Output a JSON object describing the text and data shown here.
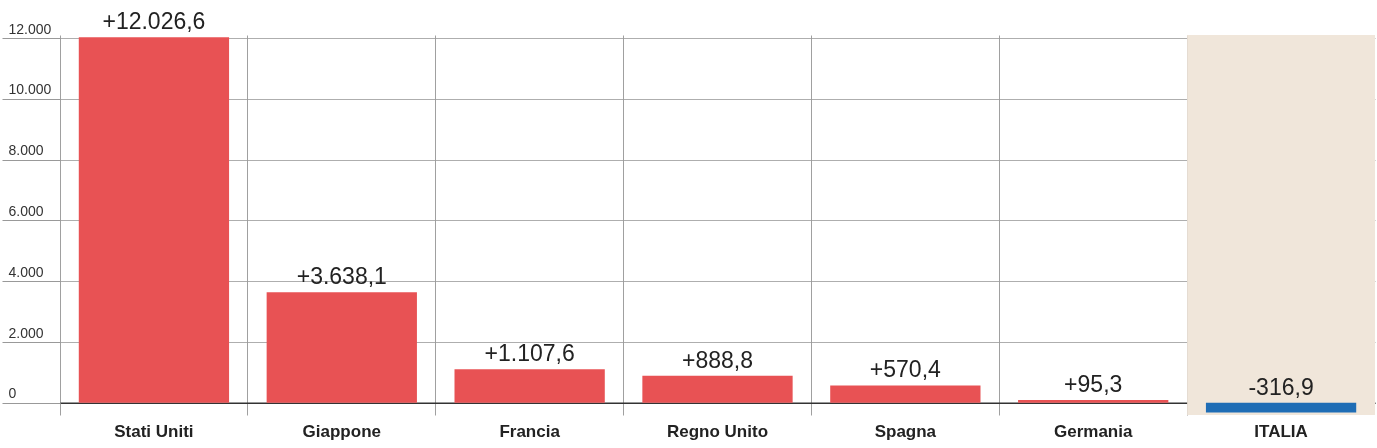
{
  "chart_data": {
    "type": "bar",
    "categories": [
      "Stati Uniti",
      "Giappone",
      "Francia",
      "Regno Unito",
      "Spagna",
      "Germania",
      "ITALIA"
    ],
    "values": [
      12026.6,
      3638.1,
      1107.6,
      888.8,
      570.4,
      95.3,
      -316.9
    ],
    "colors": [
      "#e85254",
      "#e85254",
      "#e85254",
      "#e85254",
      "#e85254",
      "#e85254",
      "#1f6db5"
    ],
    "value_labels": [
      "+12.026,6",
      "+3.638,1",
      "+1.107,6",
      "+888,8",
      "+570,4",
      "+95,3",
      "-316,9"
    ],
    "ylim": [
      -400,
      12100
    ],
    "yticks": [
      {
        "value": 0,
        "label": "0"
      },
      {
        "value": 2000,
        "label": "2.000"
      },
      {
        "value": 4000,
        "label": "4.000"
      },
      {
        "value": 6000,
        "label": "6.000"
      },
      {
        "value": 8000,
        "label": "8.000"
      },
      {
        "value": 10000,
        "label": "10.000"
      },
      {
        "value": 12000,
        "label": "12.000"
      }
    ],
    "bands": [
      {
        "axis": "x",
        "from": "ITALIA",
        "to": "ITALIA",
        "color": "#f0e6da"
      }
    ],
    "grid": true
  }
}
